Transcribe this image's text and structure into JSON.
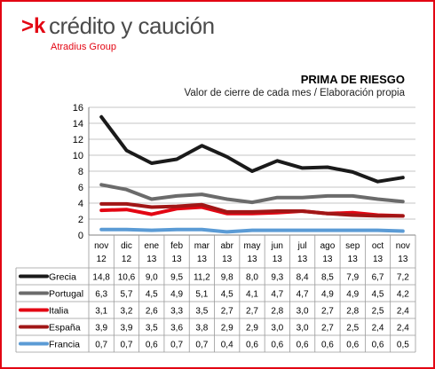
{
  "logo": {
    "mark": ">k",
    "name": "crédito y caución",
    "subtitle": "Atradius Group"
  },
  "colors": {
    "brand": "#e30613"
  },
  "chart_data": {
    "type": "line",
    "title": "PRIMA DE RIESGO",
    "subtitle": "Valor de cierre de cada mes / Elaboración propia",
    "categories": [
      [
        "nov",
        "12"
      ],
      [
        "dic",
        "12"
      ],
      [
        "ene",
        "13"
      ],
      [
        "feb",
        "13"
      ],
      [
        "mar",
        "13"
      ],
      [
        "abr",
        "13"
      ],
      [
        "may",
        "13"
      ],
      [
        "jun",
        "13"
      ],
      [
        "jul",
        "13"
      ],
      [
        "ago",
        "13"
      ],
      [
        "sep",
        "13"
      ],
      [
        "oct",
        "13"
      ],
      [
        "nov",
        "13"
      ]
    ],
    "ylim": [
      0,
      16
    ],
    "yticks": [
      0,
      2,
      4,
      6,
      8,
      10,
      12,
      14,
      16
    ],
    "grid": true,
    "legend": "data table below chart",
    "series": [
      {
        "name": "Grecia",
        "color": "#1a1a1a",
        "values": [
          14.8,
          10.6,
          9.0,
          9.5,
          11.2,
          9.8,
          8.0,
          9.3,
          8.4,
          8.5,
          7.9,
          6.7,
          7.2
        ],
        "labels": [
          "14,8",
          "10,6",
          "9,0",
          "9,5",
          "11,2",
          "9,8",
          "8,0",
          "9,3",
          "8,4",
          "8,5",
          "7,9",
          "6,7",
          "7,2"
        ]
      },
      {
        "name": "Portugal",
        "color": "#6b6b6b",
        "values": [
          6.3,
          5.7,
          4.5,
          4.9,
          5.1,
          4.5,
          4.1,
          4.7,
          4.7,
          4.9,
          4.9,
          4.5,
          4.2
        ],
        "labels": [
          "6,3",
          "5,7",
          "4,5",
          "4,9",
          "5,1",
          "4,5",
          "4,1",
          "4,7",
          "4,7",
          "4,9",
          "4,9",
          "4,5",
          "4,2"
        ]
      },
      {
        "name": "Italia",
        "color": "#e30613",
        "values": [
          3.1,
          3.2,
          2.6,
          3.3,
          3.5,
          2.7,
          2.7,
          2.8,
          3.0,
          2.7,
          2.8,
          2.5,
          2.4
        ],
        "labels": [
          "3,1",
          "3,2",
          "2,6",
          "3,3",
          "3,5",
          "2,7",
          "2,7",
          "2,8",
          "3,0",
          "2,7",
          "2,8",
          "2,5",
          "2,4"
        ]
      },
      {
        "name": "España",
        "color": "#a11616",
        "values": [
          3.9,
          3.9,
          3.5,
          3.6,
          3.8,
          2.9,
          2.9,
          3.0,
          3.0,
          2.7,
          2.5,
          2.4,
          2.4
        ],
        "labels": [
          "3,9",
          "3,9",
          "3,5",
          "3,6",
          "3,8",
          "2,9",
          "2,9",
          "3,0",
          "3,0",
          "2,7",
          "2,5",
          "2,4",
          "2,4"
        ]
      },
      {
        "name": "Francia",
        "color": "#5b9bd5",
        "values": [
          0.7,
          0.7,
          0.6,
          0.7,
          0.7,
          0.4,
          0.6,
          0.6,
          0.6,
          0.6,
          0.6,
          0.6,
          0.5
        ],
        "labels": [
          "0,7",
          "0,7",
          "0,6",
          "0,7",
          "0,7",
          "0,4",
          "0,6",
          "0,6",
          "0,6",
          "0,6",
          "0,6",
          "0,6",
          "0,5"
        ]
      }
    ]
  }
}
